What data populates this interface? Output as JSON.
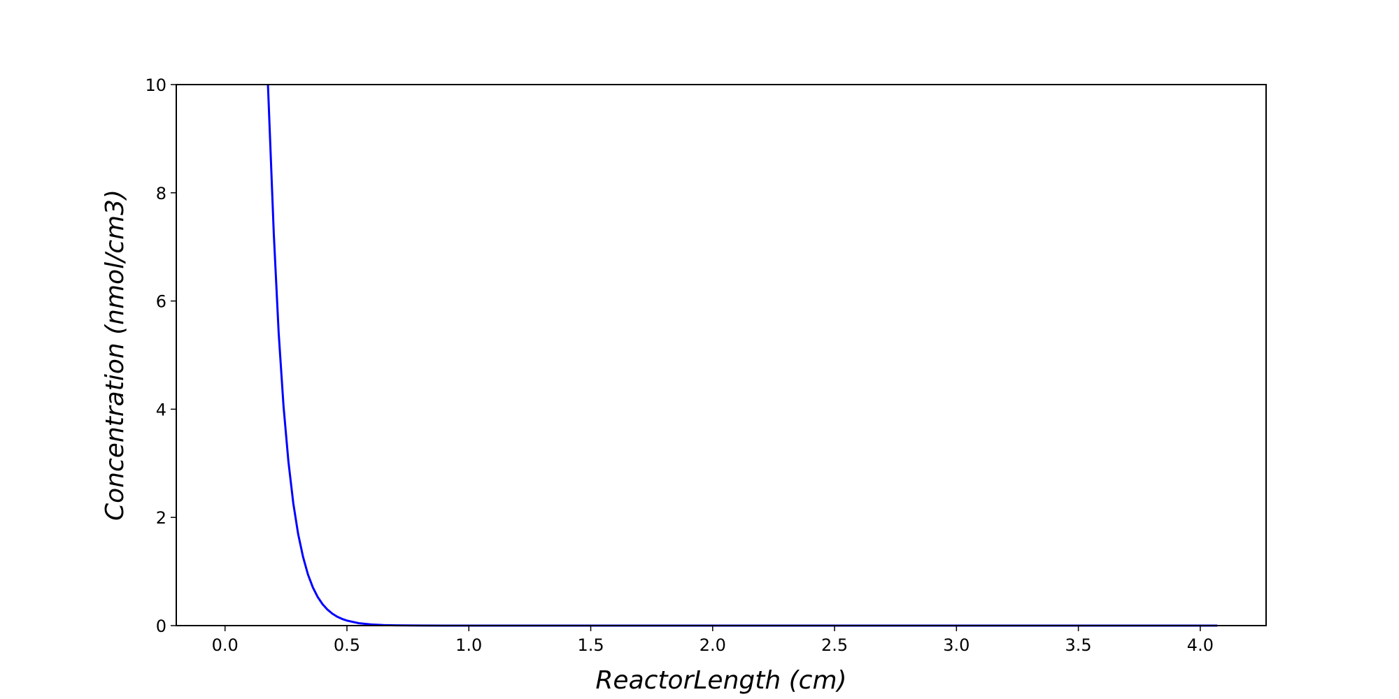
{
  "chart_data": {
    "type": "line",
    "title": "",
    "xlabel": "ReactorLength (cm)",
    "ylabel": "Concentration (nmol/cm3)",
    "xlim": [
      -0.2,
      4.27
    ],
    "ylim": [
      0,
      10
    ],
    "x_ticks": [
      "0.0",
      "0.5",
      "1.0",
      "1.5",
      "2.0",
      "2.5",
      "3.0",
      "3.5",
      "4.0"
    ],
    "y_ticks": [
      "0",
      "2",
      "4",
      "6",
      "8",
      "10"
    ],
    "grid": false,
    "legend": "none",
    "series": [
      {
        "color": "#0000ff",
        "x": [
          0.176,
          0.2,
          0.22,
          0.24,
          0.26,
          0.28,
          0.3,
          0.32,
          0.34,
          0.36,
          0.38,
          0.4,
          0.42,
          0.44,
          0.46,
          0.48,
          0.5,
          0.55,
          0.6,
          0.65,
          0.7,
          0.8,
          0.9,
          1.0,
          1.5,
          2.0,
          2.5,
          3.0,
          3.5,
          4.0,
          4.07
        ],
        "y": [
          10.0,
          7.24,
          5.41,
          4.05,
          3.03,
          2.26,
          1.69,
          1.27,
          0.946,
          0.708,
          0.529,
          0.396,
          0.296,
          0.221,
          0.165,
          0.124,
          0.0925,
          0.0437,
          0.0206,
          0.0098,
          0.0046,
          0.001,
          0.0002,
          0.0,
          0.0,
          0.0,
          0.0,
          0.0,
          0.0,
          0.0,
          0.0
        ]
      }
    ]
  }
}
